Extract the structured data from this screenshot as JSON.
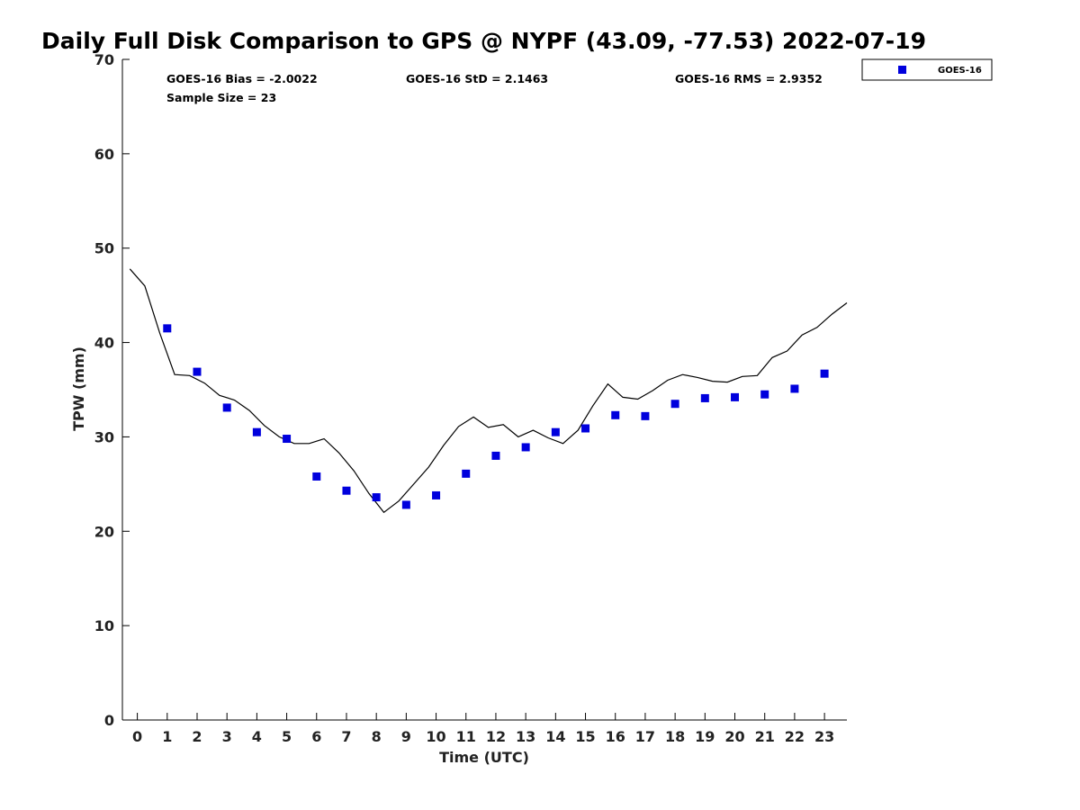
{
  "chart_data": {
    "type": "scatter",
    "title": "Daily Full Disk Comparison to GPS @ NYPF (43.09, -77.53) 2022-07-19",
    "xlabel": "Time (UTC)",
    "ylabel": "TPW (mm)",
    "xlim": [
      -0.5,
      23.75
    ],
    "ylim": [
      0,
      70
    ],
    "x_ticks": [
      0,
      1,
      2,
      3,
      4,
      5,
      6,
      7,
      8,
      9,
      10,
      11,
      12,
      13,
      14,
      15,
      16,
      17,
      18,
      19,
      20,
      21,
      22,
      23
    ],
    "y_ticks": [
      0,
      10,
      20,
      30,
      40,
      50,
      60,
      70
    ],
    "grid": false,
    "legend_position": "top-right, outside plot",
    "stats": {
      "bias": "GOES-16 Bias = -2.0022",
      "std": "GOES-16 StD = 2.1463",
      "rms": "GOES-16 RMS = 2.9352",
      "sample": "Sample Size = 23"
    },
    "series": [
      {
        "name": "GOES-16",
        "kind": "markers",
        "color": "#0000dd",
        "x": [
          1,
          2,
          3,
          4,
          5,
          6,
          7,
          8,
          9,
          10,
          11,
          12,
          13,
          14,
          15,
          16,
          17,
          18,
          19,
          20,
          21,
          22,
          23
        ],
        "y": [
          41.5,
          36.9,
          33.1,
          30.5,
          29.8,
          25.8,
          24.3,
          23.6,
          22.8,
          23.8,
          26.1,
          28.0,
          28.9,
          30.5,
          30.9,
          32.3,
          32.2,
          33.5,
          34.1,
          34.2,
          34.5,
          35.1,
          36.7
        ]
      },
      {
        "kind": "line",
        "color": "#000000",
        "x": [
          -0.25,
          0.25,
          0.75,
          1.25,
          1.75,
          2.25,
          2.75,
          3.25,
          3.75,
          4.25,
          4.75,
          5.25,
          5.75,
          6.25,
          6.75,
          7.25,
          7.75,
          8.25,
          8.75,
          9.25,
          9.75,
          10.25,
          10.75,
          11.25,
          11.75,
          12.25,
          12.75,
          13.25,
          13.75,
          14.25,
          14.75,
          15.25,
          15.75,
          16.25,
          16.75,
          17.25,
          17.75,
          18.25,
          18.75,
          19.25,
          19.75,
          20.25,
          20.75,
          21.25,
          21.75,
          22.25,
          22.75,
          23.25,
          23.75
        ],
        "y": [
          47.8,
          46.0,
          41.0,
          36.6,
          36.5,
          35.7,
          34.4,
          33.9,
          32.8,
          31.2,
          30.0,
          29.3,
          29.3,
          29.8,
          28.3,
          26.4,
          24.0,
          22.0,
          23.2,
          25.0,
          26.8,
          29.1,
          31.1,
          32.1,
          31.0,
          31.3,
          30.0,
          30.7,
          29.9,
          29.3,
          30.7,
          33.3,
          35.6,
          34.2,
          34.0,
          34.9,
          36.0,
          36.6,
          36.3,
          35.9,
          35.8,
          36.4,
          36.5,
          38.4,
          39.1,
          40.8,
          41.6,
          43.0,
          44.2
        ]
      }
    ]
  }
}
